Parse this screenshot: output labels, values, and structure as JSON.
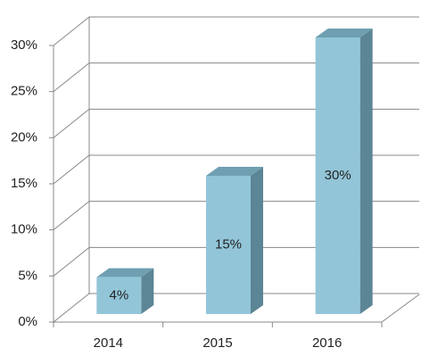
{
  "chart_data": {
    "type": "bar3d",
    "categories": [
      "2014",
      "2015",
      "2016"
    ],
    "values": [
      4,
      15,
      30
    ],
    "value_labels": [
      "4%",
      "15%",
      "30%"
    ],
    "color": "#92c5d8",
    "ylim": [
      0,
      30
    ],
    "yticks": [
      {
        "value": 0,
        "label": "0%"
      },
      {
        "value": 5,
        "label": "5%"
      },
      {
        "value": 10,
        "label": "10%"
      },
      {
        "value": 15,
        "label": "15%"
      },
      {
        "value": 20,
        "label": "20%"
      },
      {
        "value": 25,
        "label": "25%"
      },
      {
        "value": 30,
        "label": "30%"
      }
    ],
    "grid": true
  }
}
